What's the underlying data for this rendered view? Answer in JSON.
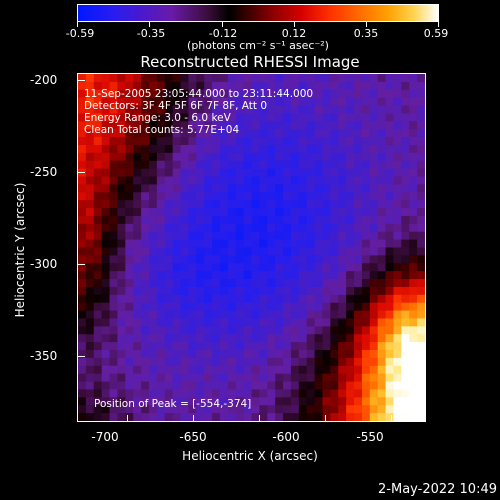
{
  "colorbar": {
    "ticks": [
      "-0.59",
      "-0.35",
      "-0.12",
      "0.12",
      "0.35",
      "0.59"
    ],
    "units_label": "(photons cm⁻² s⁻¹ asec⁻²)"
  },
  "plot": {
    "title": "Reconstructed RHESSI Image",
    "annotations": [
      "11-Sep-2005 23:05:44.000 to 23:11:44.000",
      "Detectors: 3F 4F 5F 6F 7F 8F, Att 0",
      "Energy Range: 3.0 - 6.0 keV",
      "Clean     Total counts: 5.77E+04"
    ],
    "peak_label": "Position of Peak = [-554,-374]",
    "x_axis": {
      "label": "Heliocentric X (arcsec)",
      "ticks": [
        "-700",
        "-650",
        "-600",
        "-550"
      ]
    },
    "y_axis": {
      "label": "Heliocentric Y (arcsec)",
      "ticks": [
        "-200",
        "-250",
        "-300",
        "-350"
      ]
    }
  },
  "footer": {
    "date": "2-May-2022 10:49"
  }
}
